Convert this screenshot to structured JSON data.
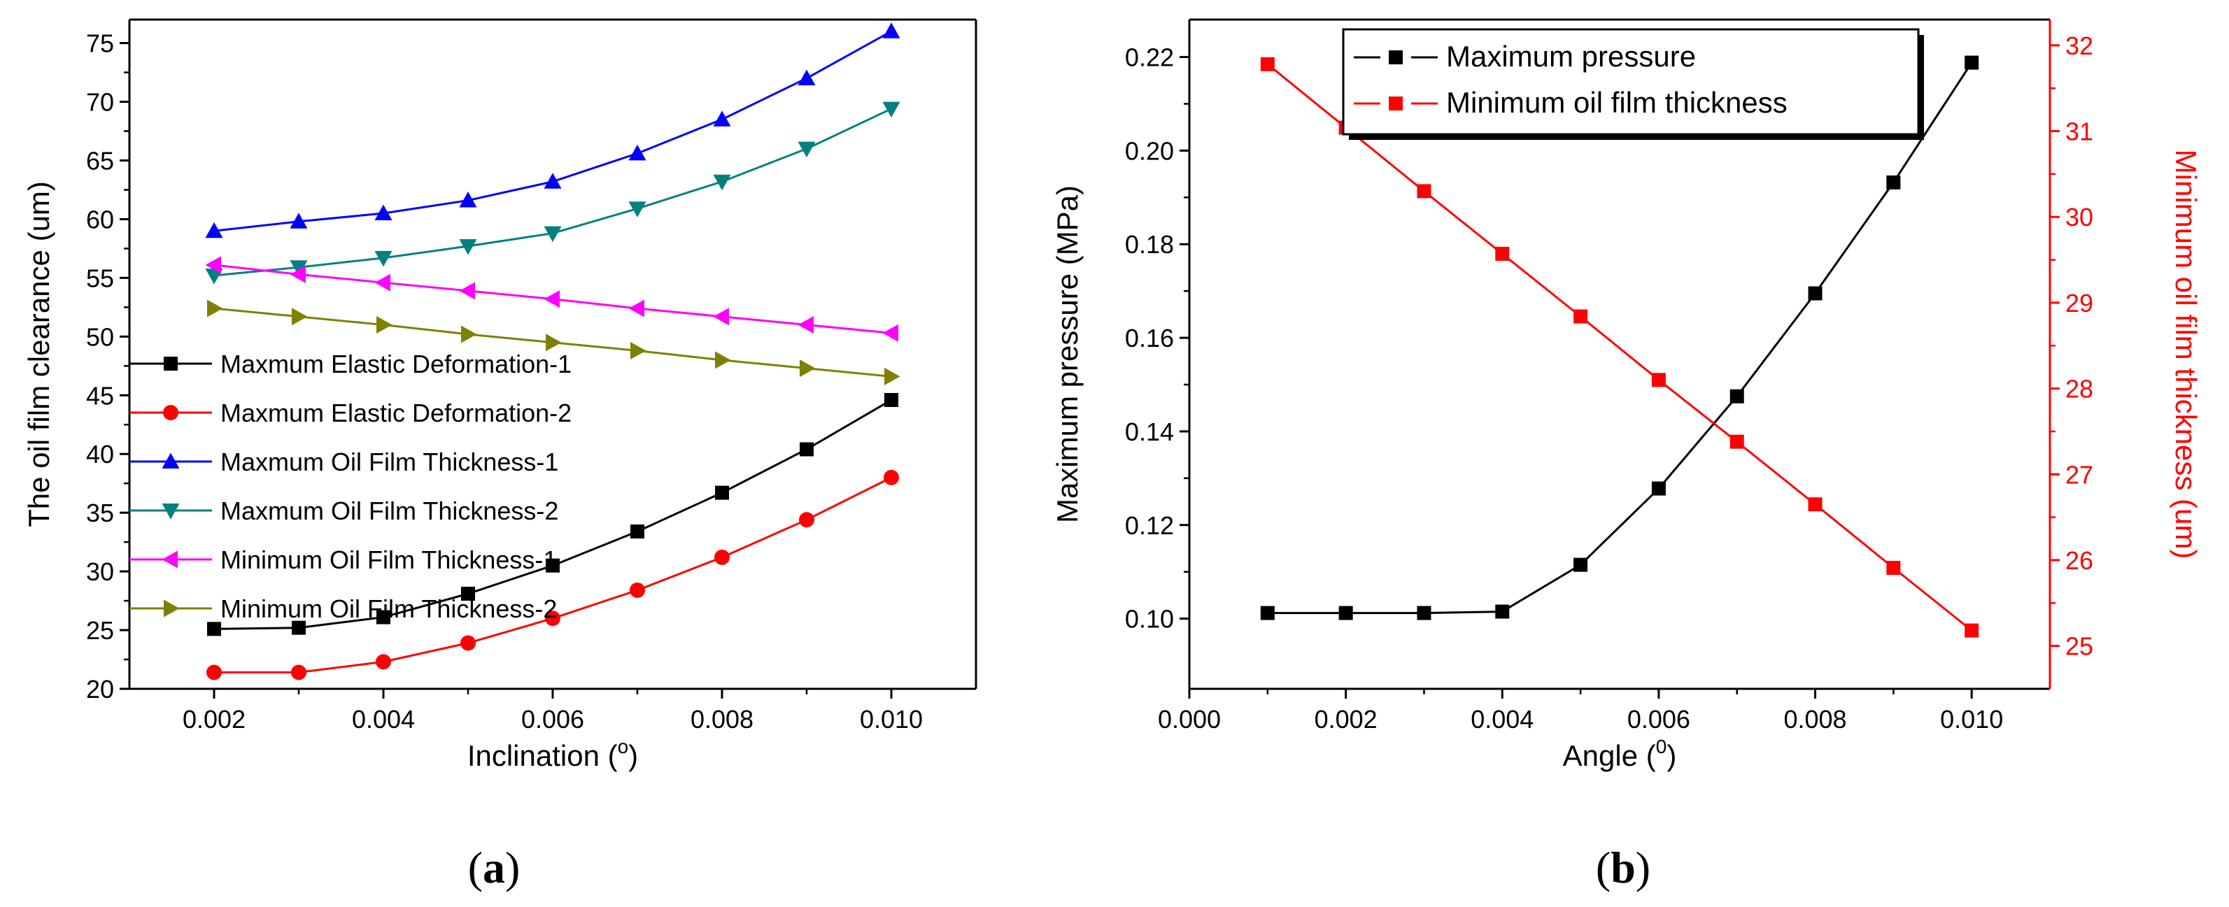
{
  "chart_data": [
    {
      "type": "line",
      "panel_label": "a",
      "xlabel": "Inclination (",
      "xlabel_sup": "o",
      "xlabel_close": ")",
      "ylabel": "The oil film clearance (um)",
      "xlim": [
        0.001,
        0.011
      ],
      "ylim": [
        20,
        77
      ],
      "xticks": [
        "0.002",
        "0.004",
        "0.006",
        "0.008",
        "0.010"
      ],
      "yticks": [
        "20",
        "25",
        "30",
        "35",
        "40",
        "45",
        "50",
        "55",
        "60",
        "65",
        "70",
        "75"
      ],
      "x": [
        0.002,
        0.003,
        0.004,
        0.005,
        0.006,
        0.007,
        0.008,
        0.009,
        0.01
      ],
      "legend_position": "left-center",
      "series": [
        {
          "name": "Maxmum Elastic Deformation-1",
          "color": "#000000",
          "marker": "square",
          "values": [
            25.1,
            25.2,
            26.1,
            28.1,
            30.5,
            33.4,
            36.7,
            40.4,
            44.6
          ]
        },
        {
          "name": "Maxmum Elastic Deformation-2",
          "color": "#ff0000",
          "marker": "circle",
          "values": [
            21.4,
            21.4,
            22.3,
            23.9,
            26.0,
            28.4,
            31.2,
            34.4,
            38.0
          ]
        },
        {
          "name": "Maxmum Oil Film Thickness-1",
          "color": "#0000ff",
          "marker": "triangle-up",
          "values": [
            59.0,
            59.8,
            60.5,
            61.6,
            63.2,
            65.6,
            68.5,
            72.0,
            76.0
          ]
        },
        {
          "name": "Maxmum Oil Film Thickness-2",
          "color": "#008080",
          "marker": "triangle-down",
          "values": [
            55.2,
            55.9,
            56.7,
            57.7,
            58.8,
            60.9,
            63.2,
            66.0,
            69.4
          ]
        },
        {
          "name": "Minimum Oil Film Thickness-1",
          "color": "#ff00ff",
          "marker": "triangle-left",
          "values": [
            56.1,
            55.3,
            54.6,
            53.9,
            53.2,
            52.4,
            51.7,
            51.0,
            50.3
          ]
        },
        {
          "name": "Minimum Oil Film Thickness-2",
          "color": "#808000",
          "marker": "triangle-right",
          "values": [
            52.4,
            51.7,
            51.0,
            50.2,
            49.5,
            48.8,
            48.0,
            47.3,
            46.6
          ]
        }
      ]
    },
    {
      "type": "line",
      "panel_label": "b",
      "xlabel": "Angle (",
      "xlabel_sup": "0",
      "xlabel_close": ")",
      "ylabel": "Maximum pressure (MPa)",
      "y2label": "Minimum oil film thickness (um)",
      "xlim": [
        0.0,
        0.011
      ],
      "ylim": [
        0.085,
        0.228
      ],
      "y2lim": [
        24.5,
        32.3
      ],
      "xticks": [
        "0.000",
        "0.002",
        "0.004",
        "0.006",
        "0.008",
        "0.010"
      ],
      "yticks": [
        "0.10",
        "0.12",
        "0.14",
        "0.16",
        "0.18",
        "0.20",
        "0.22"
      ],
      "y2ticks": [
        "25",
        "26",
        "27",
        "28",
        "29",
        "30",
        "31",
        "32"
      ],
      "x": [
        0.001,
        0.002,
        0.003,
        0.004,
        0.005,
        0.006,
        0.007,
        0.008,
        0.009,
        0.01
      ],
      "legend_position": "top-center",
      "series": [
        {
          "name": "Maximum pressure",
          "axis": "left",
          "color": "#000000",
          "marker": "square",
          "values": [
            0.1012,
            0.1012,
            0.1012,
            0.1015,
            0.1115,
            0.1278,
            0.1475,
            0.1695,
            0.1932,
            0.2188
          ]
        },
        {
          "name": "Minimum oil film thickness",
          "axis": "right",
          "color": "#ff0000",
          "marker": "square",
          "values": [
            31.78,
            31.04,
            30.3,
            29.57,
            28.84,
            28.1,
            27.38,
            26.65,
            25.91,
            25.18
          ]
        }
      ]
    }
  ]
}
